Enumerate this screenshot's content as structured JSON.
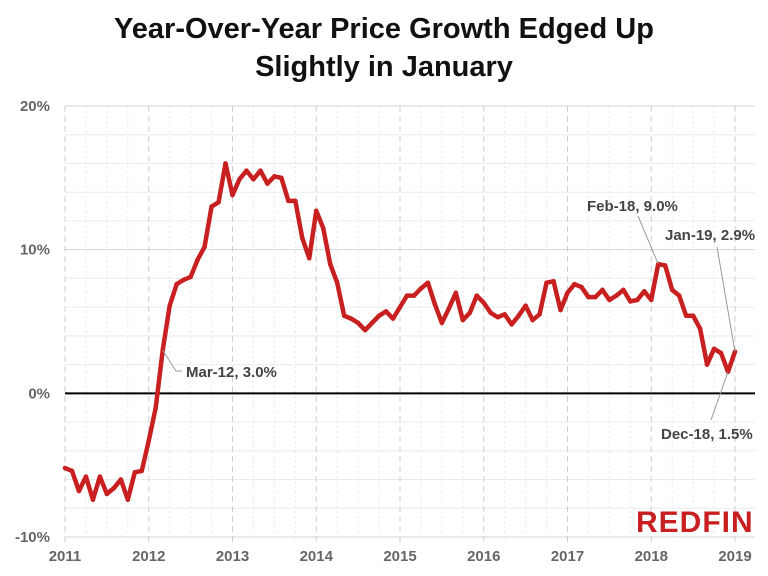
{
  "chart_data": {
    "type": "line",
    "title": "Year-Over-Year Price Growth Edged Up Slightly in January",
    "xlabel": "",
    "ylabel": "",
    "x_start": "2011-01",
    "x_end": "2019-01",
    "frequency": "monthly",
    "xticks": [
      "2011",
      "2012",
      "2013",
      "2014",
      "2015",
      "2016",
      "2017",
      "2018",
      "2019"
    ],
    "yticks": [
      "-10%",
      "0%",
      "10%",
      "20%"
    ],
    "ylim": [
      -10,
      20
    ],
    "grid": true,
    "line_color": "#c82021",
    "series": [
      {
        "values": [
          -5.2,
          -5.4,
          -6.8,
          -5.8,
          -7.4,
          -5.8,
          -7.0,
          -6.6,
          -6.0,
          -7.4,
          -5.5,
          -5.4,
          -3.3,
          -1.0,
          3.0,
          6.1,
          7.6,
          7.9,
          8.1,
          9.3,
          10.2,
          13.0,
          13.3,
          16.0,
          13.8,
          14.9,
          15.5,
          14.9,
          15.5,
          14.6,
          15.1,
          15.0,
          13.4,
          13.4,
          10.8,
          9.4,
          12.7,
          11.5,
          9.0,
          7.7,
          5.4,
          5.2,
          4.9,
          4.4,
          4.9,
          5.4,
          5.7,
          5.2,
          6.0,
          6.8,
          6.8,
          7.3,
          7.7,
          6.2,
          4.9,
          5.9,
          7.0,
          5.1,
          5.6,
          6.8,
          6.3,
          5.6,
          5.3,
          5.5,
          4.8,
          5.4,
          6.1,
          5.1,
          5.5,
          7.7,
          7.8,
          5.8,
          7.0,
          7.6,
          7.4,
          6.7,
          6.7,
          7.2,
          6.5,
          6.8,
          7.2,
          6.4,
          6.5,
          7.1,
          6.5,
          9.0,
          8.9,
          7.2,
          6.8,
          5.4,
          5.4,
          4.5,
          2.0,
          3.1,
          2.8,
          1.5,
          2.9
        ]
      }
    ],
    "annotations": [
      {
        "text": "Mar-12, 3.0%",
        "index": 14
      },
      {
        "text": "Feb-18, 9.0%",
        "index": 85
      },
      {
        "text": "Jan-19, 2.9%",
        "index": 96
      },
      {
        "text": "Dec-18, 1.5%",
        "index": 95
      }
    ]
  },
  "logo": "REDFIN"
}
